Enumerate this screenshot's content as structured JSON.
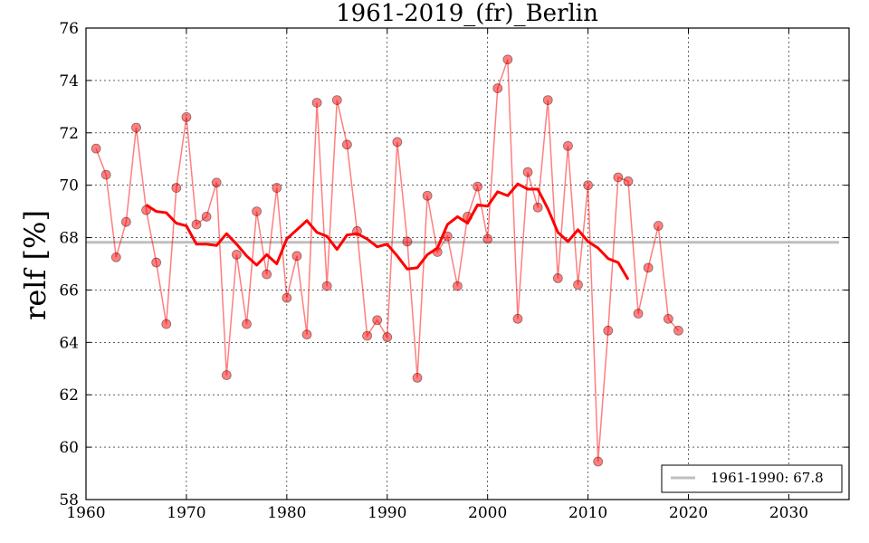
{
  "chart_data": {
    "type": "line",
    "title": "1961-2019_(fr)_Berlin",
    "ylabel": "relf [%]",
    "xlabel": "",
    "xlim": [
      1960,
      2036
    ],
    "ylim": [
      58,
      76
    ],
    "xticks": [
      1960,
      1970,
      1980,
      1990,
      2000,
      2010,
      2020,
      2030
    ],
    "yticks": [
      58,
      60,
      62,
      64,
      66,
      68,
      70,
      72,
      74,
      76
    ],
    "grid": true,
    "legend_position": "bottom-right",
    "colors": {
      "annual": "#ff0000",
      "smooth": "#ff0000",
      "reference": "#bfbfbf"
    },
    "series": [
      {
        "style": "markers-line",
        "x": [
          1961,
          1962,
          1963,
          1964,
          1965,
          1966,
          1967,
          1968,
          1969,
          1970,
          1971,
          1972,
          1973,
          1974,
          1975,
          1976,
          1977,
          1978,
          1979,
          1980,
          1981,
          1982,
          1983,
          1984,
          1985,
          1986,
          1987,
          1988,
          1989,
          1990,
          1991,
          1992,
          1993,
          1994,
          1995,
          1996,
          1997,
          1998,
          1999,
          2000,
          2001,
          2002,
          2003,
          2004,
          2005,
          2006,
          2007,
          2008,
          2009,
          2010,
          2011,
          2012,
          2013,
          2014,
          2015,
          2016,
          2017,
          2018,
          2019
        ],
        "values": [
          71.4,
          70.4,
          67.25,
          68.6,
          72.2,
          69.05,
          67.05,
          64.7,
          69.9,
          72.6,
          68.5,
          68.8,
          70.1,
          62.75,
          67.35,
          64.7,
          69.0,
          66.6,
          69.9,
          65.7,
          67.3,
          64.3,
          73.15,
          66.15,
          73.25,
          71.55,
          68.25,
          64.25,
          64.85,
          64.2,
          71.65,
          67.85,
          62.65,
          69.6,
          67.45,
          68.05,
          66.15,
          68.8,
          69.95,
          67.95,
          73.7,
          74.8,
          64.9,
          70.5,
          69.15,
          73.25,
          66.45,
          71.5,
          66.2,
          70.0,
          59.45,
          64.45,
          70.3,
          70.15,
          65.1,
          66.85,
          68.45,
          64.9,
          64.45
        ]
      },
      {
        "style": "smooth-line",
        "x": [
          1966,
          1967,
          1968,
          1969,
          1970,
          1971,
          1972,
          1973,
          1974,
          1975,
          1976,
          1977,
          1978,
          1979,
          1980,
          1981,
          1982,
          1983,
          1984,
          1985,
          1986,
          1987,
          1988,
          1989,
          1990,
          1991,
          1992,
          1993,
          1994,
          1995,
          1996,
          1997,
          1998,
          1999,
          2000,
          2001,
          2002,
          2003,
          2004,
          2005,
          2006,
          2007,
          2008,
          2009,
          2010,
          2011,
          2012,
          2013,
          2014
        ],
        "values": [
          69.25,
          69.0,
          68.95,
          68.55,
          68.45,
          67.75,
          67.75,
          67.7,
          68.15,
          67.75,
          67.3,
          66.95,
          67.35,
          67.0,
          67.95,
          68.3,
          68.65,
          68.2,
          68.05,
          67.55,
          68.1,
          68.15,
          67.95,
          67.65,
          67.75,
          67.3,
          66.8,
          66.85,
          67.35,
          67.6,
          68.5,
          68.8,
          68.55,
          69.25,
          69.2,
          69.75,
          69.6,
          70.05,
          69.85,
          69.85,
          69.1,
          68.2,
          67.85,
          68.3,
          67.85,
          67.6,
          67.2,
          67.05,
          66.4
        ]
      },
      {
        "name": "1961-1990: 67.8",
        "style": "reference-line",
        "x": [
          1960,
          2035
        ],
        "values": [
          67.82,
          67.82
        ]
      }
    ]
  }
}
